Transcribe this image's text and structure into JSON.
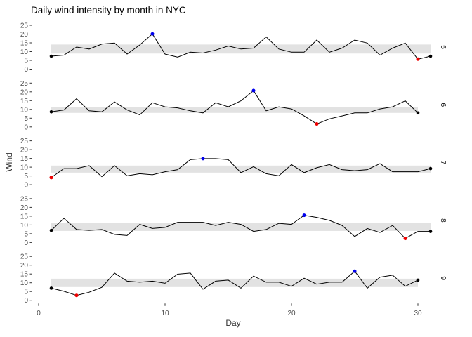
{
  "chart_data": {
    "type": "line",
    "title": "Daily wind intensity by month in NYC",
    "xlabel": "Day",
    "ylabel": "Wind",
    "x_ticks": [
      0,
      10,
      20,
      30
    ],
    "y_ticks": [
      0,
      5,
      10,
      15,
      20,
      25
    ],
    "xlim": [
      0,
      31
    ],
    "ylim_per_facet": [
      0,
      25
    ],
    "grid": false,
    "legend": "none",
    "facet_side": "right",
    "colors": {
      "line": "#000000",
      "band": "#e2e2e2",
      "max_point": "#0000ee",
      "min_point": "#ee0000",
      "end_point": "#000000",
      "tick_text": "#4d4d4d",
      "strip_text": "#1a1a1a"
    },
    "facets": [
      {
        "month": "5",
        "band": {
          "lower": 8.9,
          "upper": 14.05
        },
        "max": {
          "day": 9,
          "value": 20.1
        },
        "min": {
          "day": 30,
          "value": 5.7
        },
        "values": [
          7.4,
          8.0,
          12.6,
          11.5,
          14.3,
          14.9,
          8.6,
          13.8,
          20.1,
          8.6,
          6.9,
          9.7,
          9.2,
          10.9,
          13.2,
          11.5,
          12.0,
          18.4,
          11.5,
          9.7,
          9.7,
          16.6,
          9.7,
          12.0,
          16.6,
          14.9,
          8.0,
          12.0,
          14.9,
          5.7,
          7.4
        ]
      },
      {
        "month": "6",
        "band": {
          "lower": 8.0,
          "upper": 11.5
        },
        "max": {
          "day": 17,
          "value": 20.7
        },
        "min": {
          "day": 22,
          "value": 1.7
        },
        "values": [
          8.6,
          9.7,
          16.1,
          9.2,
          8.6,
          14.3,
          9.7,
          6.9,
          13.8,
          11.5,
          10.9,
          9.2,
          8.0,
          13.8,
          11.5,
          14.9,
          20.7,
          9.2,
          11.5,
          10.3,
          6.3,
          1.7,
          4.6,
          6.3,
          8.0,
          8.0,
          10.3,
          11.5,
          14.9,
          8.0
        ]
      },
      {
        "month": "7",
        "band": {
          "lower": 6.9,
          "upper": 10.9
        },
        "max": {
          "day": 13,
          "value": 14.9
        },
        "min": {
          "day": 1,
          "value": 4.1
        },
        "values": [
          4.1,
          9.2,
          9.2,
          10.9,
          4.6,
          10.9,
          5.1,
          6.3,
          5.7,
          7.4,
          8.6,
          14.3,
          14.9,
          14.9,
          14.3,
          6.9,
          10.3,
          6.3,
          5.1,
          11.5,
          6.9,
          9.7,
          11.5,
          8.6,
          8.0,
          8.6,
          12.0,
          7.4,
          7.4,
          7.4,
          9.2
        ]
      },
      {
        "month": "8",
        "band": {
          "lower": 6.6,
          "upper": 11.2
        },
        "max": {
          "day": 21,
          "value": 15.5
        },
        "min": {
          "day": 29,
          "value": 2.3
        },
        "values": [
          6.9,
          13.8,
          7.4,
          6.9,
          7.4,
          4.6,
          4.0,
          10.3,
          8.0,
          8.6,
          11.5,
          11.5,
          11.5,
          9.7,
          11.5,
          10.3,
          6.3,
          7.4,
          10.9,
          10.3,
          15.5,
          14.3,
          12.6,
          9.7,
          3.4,
          8.0,
          5.7,
          9.7,
          2.3,
          6.3,
          6.3
        ]
      },
      {
        "month": "9",
        "band": {
          "lower": 7.55,
          "upper": 12.33
        },
        "max": {
          "day": 25,
          "value": 16.6
        },
        "min": {
          "day": 3,
          "value": 2.8
        },
        "values": [
          6.9,
          5.1,
          2.8,
          4.6,
          7.4,
          15.5,
          10.9,
          10.3,
          10.9,
          9.7,
          14.9,
          15.5,
          6.3,
          10.9,
          11.5,
          6.9,
          13.8,
          10.3,
          10.3,
          8.0,
          12.6,
          9.2,
          10.3,
          10.3,
          16.6,
          6.9,
          13.2,
          14.3,
          8.0,
          11.5
        ]
      }
    ]
  }
}
